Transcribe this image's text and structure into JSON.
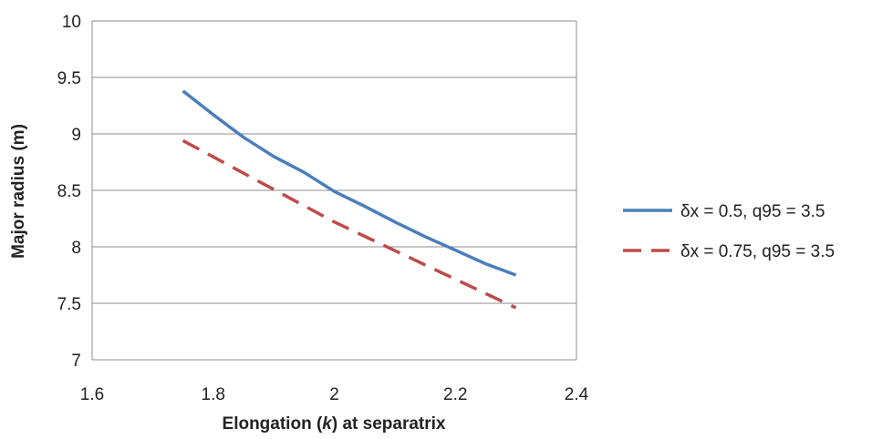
{
  "chart_data": {
    "type": "line",
    "xlabel_prefix": "Elongation (",
    "xlabel_italic": "k",
    "xlabel_suffix": ") at separatrix",
    "ylabel": "Major radius (m)",
    "xlim": [
      1.6,
      2.4
    ],
    "ylim": [
      7,
      10
    ],
    "xticks": [
      "1.6",
      "1.8",
      "2",
      "2.2",
      "2.4"
    ],
    "yticks": [
      "7",
      "7.5",
      "8",
      "8.5",
      "9",
      "9.5",
      "10"
    ],
    "grid": "horizontal",
    "legend_position": "right",
    "series": [
      {
        "name": "δx = 0.5, q95 = 3.5",
        "color": "#4a7ebb",
        "style": "solid",
        "x": [
          1.75,
          1.8,
          1.85,
          1.9,
          1.95,
          2.0,
          2.05,
          2.1,
          2.15,
          2.2,
          2.25,
          2.3
        ],
        "y": [
          9.38,
          9.17,
          8.97,
          8.8,
          8.66,
          8.49,
          8.36,
          8.22,
          8.09,
          7.97,
          7.85,
          7.75
        ]
      },
      {
        "name": "δx = 0.75, q95 = 3.5",
        "color": "#be4b48",
        "style": "dashed",
        "x": [
          1.75,
          2.0,
          2.3
        ],
        "y": [
          8.94,
          8.22,
          7.46
        ]
      }
    ]
  }
}
